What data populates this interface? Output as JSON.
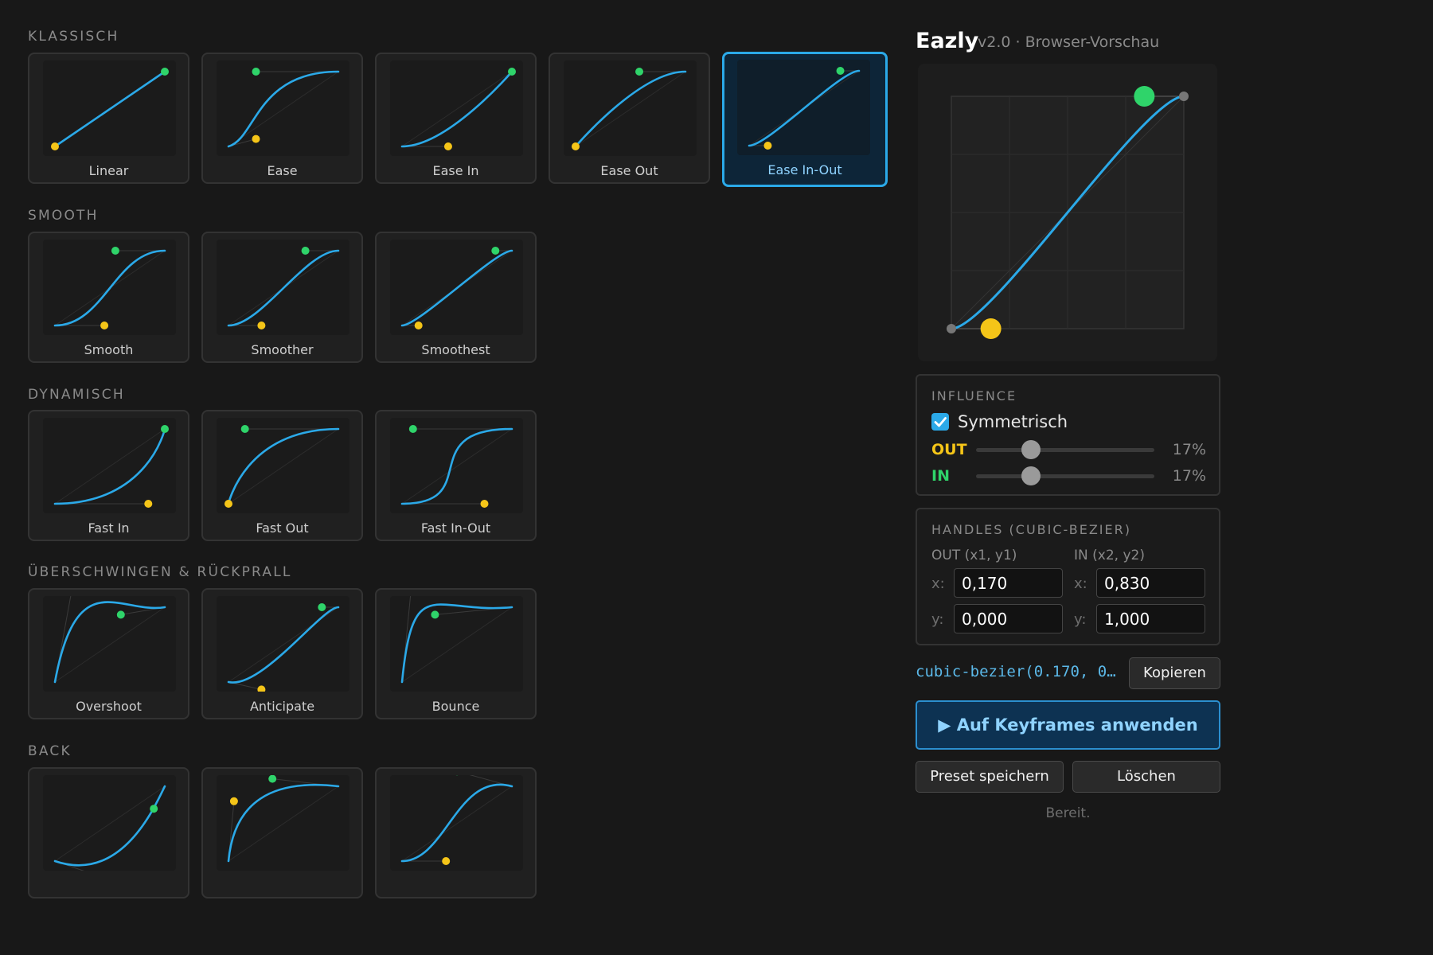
{
  "app": {
    "title": "Eazly",
    "subtitle": "v2.0 · Browser-Vorschau"
  },
  "colors": {
    "accent": "#2ba9e8",
    "curve": "#2ba9e8",
    "out_handle": "#f5c518",
    "in_handle": "#2fd46a",
    "background": "#181818"
  },
  "sections": [
    {
      "key": "klassisch",
      "title": "KLASSISCH",
      "presets": [
        {
          "name": "Linear",
          "bezier": [
            0.0,
            0.0,
            1.0,
            1.0
          ],
          "selected": false
        },
        {
          "name": "Ease",
          "bezier": [
            0.25,
            0.1,
            0.25,
            1.0
          ],
          "selected": false
        },
        {
          "name": "Ease In",
          "bezier": [
            0.42,
            0.0,
            1.0,
            1.0
          ],
          "selected": false
        },
        {
          "name": "Ease Out",
          "bezier": [
            0.0,
            0.0,
            0.58,
            1.0
          ],
          "selected": false
        },
        {
          "name": "Ease In-Out",
          "bezier": [
            0.17,
            0.0,
            0.83,
            1.0
          ],
          "selected": true
        }
      ]
    },
    {
      "key": "smooth",
      "title": "SMOOTH",
      "presets": [
        {
          "name": "Smooth",
          "bezier": [
            0.45,
            0.0,
            0.55,
            1.0
          ],
          "selected": false
        },
        {
          "name": "Smoother",
          "bezier": [
            0.3,
            0.0,
            0.7,
            1.0
          ],
          "selected": false
        },
        {
          "name": "Smoothest",
          "bezier": [
            0.15,
            0.0,
            0.85,
            1.0
          ],
          "selected": false
        }
      ]
    },
    {
      "key": "dynamisch",
      "title": "DYNAMISCH",
      "presets": [
        {
          "name": "Fast In",
          "bezier": [
            0.85,
            0.0,
            1.0,
            1.0
          ],
          "selected": false
        },
        {
          "name": "Fast Out",
          "bezier": [
            0.0,
            0.0,
            0.15,
            1.0
          ],
          "selected": false
        },
        {
          "name": "Fast In-Out",
          "bezier": [
            0.75,
            0.0,
            0.1,
            1.0
          ],
          "selected": false
        }
      ]
    },
    {
      "key": "ueberschwingen",
      "title": "ÜBERSCHWINGEN & RÜCKPRALL",
      "presets": [
        {
          "name": "Overshoot",
          "bezier": [
            0.2,
            1.6,
            0.6,
            0.9
          ],
          "selected": false
        },
        {
          "name": "Anticipate",
          "bezier": [
            0.3,
            -0.1,
            0.85,
            1.0
          ],
          "selected": false
        },
        {
          "name": "Bounce",
          "bezier": [
            0.1,
            1.5,
            0.3,
            0.9
          ],
          "selected": false
        }
      ]
    },
    {
      "key": "back",
      "title": "BACK",
      "presets": [
        {
          "name": "",
          "bezier": [
            0.6,
            -0.3,
            0.9,
            0.7
          ],
          "selected": false
        },
        {
          "name": "",
          "bezier": [
            0.05,
            0.8,
            0.4,
            1.1
          ],
          "selected": false
        },
        {
          "name": "",
          "bezier": [
            0.4,
            0.0,
            0.5,
            1.2
          ],
          "selected": false
        }
      ]
    }
  ],
  "editor": {
    "bezier": [
      0.17,
      0.0,
      0.83,
      1.0
    ]
  },
  "influence": {
    "title": "INFLUENCE",
    "symmetric_label": "Symmetrisch",
    "symmetric_checked": true,
    "out_label": "OUT",
    "out_value_text": "17%",
    "out_value": 0.17,
    "in_label": "IN",
    "in_value_text": "17%",
    "in_value": 0.17
  },
  "handles": {
    "title": "HANDLES (CUBIC-BEZIER)",
    "out_header": "OUT (x1, y1)",
    "in_header": "IN (x2, y2)",
    "x_label": "x:",
    "y_label": "y:",
    "x1": "0,170",
    "y1": "0,000",
    "x2": "0,830",
    "y2": "1,000"
  },
  "output": {
    "css_text": "cubic-bezier(0.170, 0…",
    "copy_label": "Kopieren"
  },
  "actions": {
    "apply_label": "▶ Auf Keyframes anwenden",
    "save_label": "Preset speichern",
    "delete_label": "Löschen"
  },
  "status": "Bereit."
}
